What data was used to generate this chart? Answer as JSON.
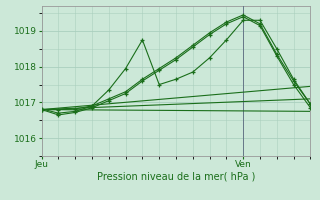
{
  "xlabel": "Pression niveau de la mer( hPa )",
  "background_color": "#cce8d8",
  "grid_color": "#aacfbe",
  "line_color": "#1a6e1a",
  "xlim": [
    0,
    48
  ],
  "ylim": [
    1015.65,
    1019.7
  ],
  "yticks": [
    1016,
    1017,
    1018,
    1019
  ],
  "xtick_labels": [
    [
      "Jeu",
      0
    ],
    [
      "Ven",
      36
    ]
  ],
  "figsize": [
    3.2,
    2.0
  ],
  "dpi": 100,
  "series": [
    {
      "x": [
        0,
        3,
        6,
        9,
        12,
        15,
        18,
        21,
        24,
        27,
        30,
        33,
        36,
        39,
        42,
        45,
        48
      ],
      "y": [
        1016.8,
        1016.65,
        1016.72,
        1016.85,
        1017.05,
        1017.25,
        1017.6,
        1017.9,
        1018.2,
        1018.55,
        1018.9,
        1019.2,
        1019.4,
        1019.15,
        1018.3,
        1017.5,
        1016.85
      ],
      "marker": "+"
    },
    {
      "x": [
        0,
        3,
        6,
        9,
        12,
        15,
        18,
        21,
        24,
        27,
        30,
        33,
        36,
        39,
        42,
        45,
        48
      ],
      "y": [
        1016.82,
        1016.7,
        1016.75,
        1016.9,
        1017.1,
        1017.3,
        1017.65,
        1017.95,
        1018.25,
        1018.6,
        1018.95,
        1019.25,
        1019.45,
        1019.2,
        1018.35,
        1017.6,
        1016.95
      ],
      "marker": "+"
    },
    {
      "x": [
        0,
        3,
        6,
        9,
        12,
        15,
        18,
        21,
        24,
        27,
        30,
        33,
        36,
        39,
        42,
        45,
        48
      ],
      "y": [
        1016.8,
        1016.8,
        1016.82,
        1016.9,
        1017.35,
        1017.95,
        1018.75,
        1017.5,
        1017.65,
        1017.85,
        1018.25,
        1018.75,
        1019.3,
        1019.3,
        1018.5,
        1017.65,
        1016.95
      ],
      "marker": "+"
    },
    {
      "x": [
        0,
        48
      ],
      "y": [
        1016.8,
        1016.75
      ],
      "marker": null
    },
    {
      "x": [
        0,
        48
      ],
      "y": [
        1016.8,
        1017.1
      ],
      "marker": null
    },
    {
      "x": [
        0,
        48
      ],
      "y": [
        1016.8,
        1017.45
      ],
      "marker": null
    }
  ],
  "vline_x": 36,
  "vline_color": "#667788"
}
